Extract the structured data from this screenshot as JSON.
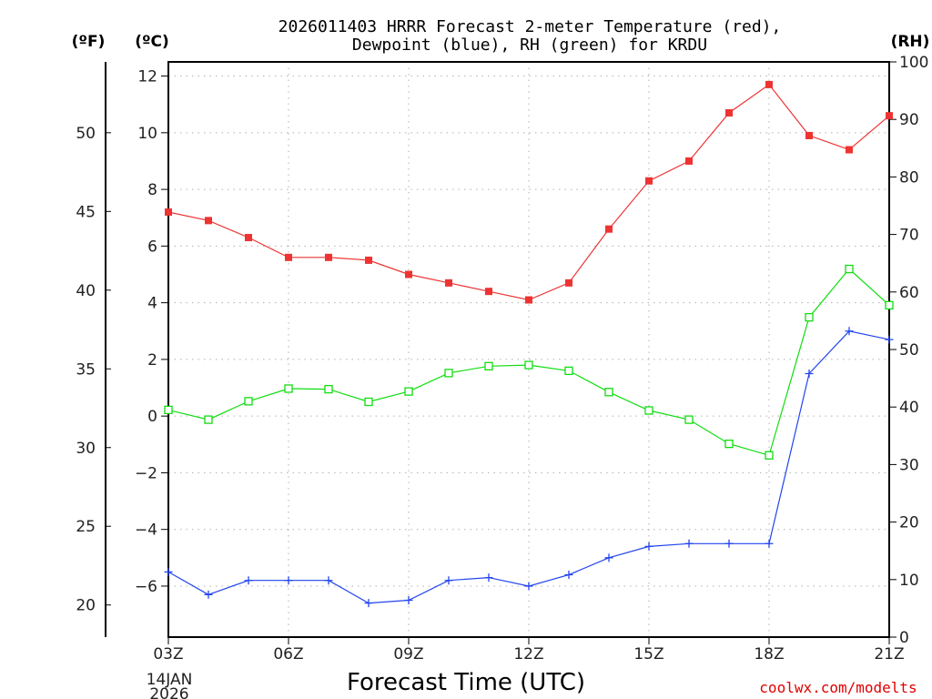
{
  "chart_data": {
    "type": "line",
    "title_line1": "2026011403 HRRR Forecast 2-meter Temperature (red),",
    "title_line2": "Dewpoint (blue), RH (green) for KRDU",
    "xlabel": "Forecast Time (UTC)",
    "date_line1": "14JAN",
    "date_line2": "2026",
    "credit": "coolwx.com/modelts",
    "units": {
      "fahrenheit": "(ºF)",
      "celsius": "(ºC)",
      "rh": "(RH)"
    },
    "x": [
      3,
      4,
      5,
      6,
      7,
      8,
      9,
      10,
      11,
      12,
      13,
      14,
      15,
      16,
      17,
      18,
      19,
      20,
      21
    ],
    "xlim": [
      3,
      21
    ],
    "x_ticks": [
      {
        "value": 3,
        "label": "03Z"
      },
      {
        "value": 6,
        "label": "06Z"
      },
      {
        "value": 9,
        "label": "09Z"
      },
      {
        "value": 12,
        "label": "12Z"
      },
      {
        "value": 15,
        "label": "15Z"
      },
      {
        "value": 18,
        "label": "18Z"
      },
      {
        "value": 21,
        "label": "21Z"
      }
    ],
    "ylim_celsius": [
      -7.8,
      12.5
    ],
    "celsius_ticks": [
      {
        "value": 12,
        "label": "12"
      },
      {
        "value": 10,
        "label": "10"
      },
      {
        "value": 8,
        "label": "8"
      },
      {
        "value": 6,
        "label": "6"
      },
      {
        "value": 4,
        "label": "4"
      },
      {
        "value": 2,
        "label": "2"
      },
      {
        "value": 0,
        "label": "0"
      },
      {
        "value": -2,
        "label": "−2"
      },
      {
        "value": -4,
        "label": "−4"
      },
      {
        "value": -6,
        "label": "−6"
      }
    ],
    "fahrenheit_ticks": [
      {
        "value": 50,
        "label": "50"
      },
      {
        "value": 45,
        "label": "45"
      },
      {
        "value": 40,
        "label": "40"
      },
      {
        "value": 35,
        "label": "35"
      },
      {
        "value": 30,
        "label": "30"
      },
      {
        "value": 25,
        "label": "25"
      },
      {
        "value": 20,
        "label": "20"
      }
    ],
    "ylim_rh": [
      0,
      100
    ],
    "rh_ticks": [
      {
        "value": 100,
        "label": "100"
      },
      {
        "value": 90,
        "label": "90"
      },
      {
        "value": 80,
        "label": "80"
      },
      {
        "value": 70,
        "label": "70"
      },
      {
        "value": 60,
        "label": "60"
      },
      {
        "value": 50,
        "label": "50"
      },
      {
        "value": 40,
        "label": "40"
      },
      {
        "value": 30,
        "label": "30"
      },
      {
        "value": 20,
        "label": "20"
      },
      {
        "value": 10,
        "label": "10"
      },
      {
        "value": 0,
        "label": "0"
      }
    ],
    "series": [
      {
        "name": "Temperature",
        "axis": "celsius",
        "color": "#ee3333",
        "marker": "filled-square",
        "values": [
          7.2,
          6.9,
          6.3,
          5.6,
          5.6,
          5.5,
          5.0,
          4.7,
          4.4,
          4.1,
          4.7,
          6.6,
          8.3,
          9.0,
          10.7,
          11.7,
          9.9,
          9.4,
          10.6
        ]
      },
      {
        "name": "Dewpoint",
        "axis": "celsius",
        "color": "#2244ee",
        "marker": "plus",
        "values": [
          -5.5,
          -6.3,
          -5.8,
          -5.8,
          -5.8,
          -6.6,
          -6.5,
          -5.8,
          -5.7,
          -6.0,
          -5.6,
          -5.0,
          -4.6,
          -4.5,
          -4.5,
          -4.5,
          1.5,
          3.0,
          2.7
        ]
      },
      {
        "name": "RH",
        "axis": "rh",
        "color": "#11dd11",
        "marker": "open-square",
        "values": [
          39.5,
          37.8,
          41.0,
          43.2,
          43.1,
          40.9,
          42.7,
          45.9,
          47.1,
          47.3,
          46.3,
          42.6,
          39.4,
          37.8,
          33.6,
          31.6,
          55.6,
          64.0,
          57.7
        ]
      }
    ]
  }
}
